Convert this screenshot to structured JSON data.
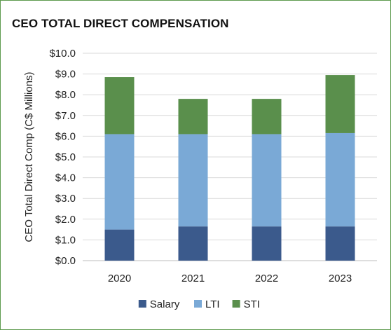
{
  "chart_data": {
    "type": "bar",
    "stacked": true,
    "title": "CEO TOTAL DIRECT COMPENSATION",
    "ylabel": "CEO Total Direct Comp (C$ Millions)",
    "xlabel": "",
    "categories": [
      "2020",
      "2021",
      "2022",
      "2023"
    ],
    "ylim": [
      0,
      10
    ],
    "ytick_labels": [
      "$0.0",
      "$1.0",
      "$2.0",
      "$3.0",
      "$4.0",
      "$5.0",
      "$6.0",
      "$7.0",
      "$8.0",
      "$9.0",
      "$10.0"
    ],
    "series": [
      {
        "name": "Salary",
        "color": "#3b5a8c",
        "values": [
          1.5,
          1.65,
          1.65,
          1.65
        ]
      },
      {
        "name": "LTI",
        "color": "#7aa9d6",
        "values": [
          4.6,
          4.45,
          4.45,
          4.5
        ]
      },
      {
        "name": "STI",
        "color": "#5a8f4c",
        "values": [
          2.75,
          1.7,
          1.7,
          2.8
        ]
      }
    ],
    "grid": true,
    "legend": "bottom"
  }
}
